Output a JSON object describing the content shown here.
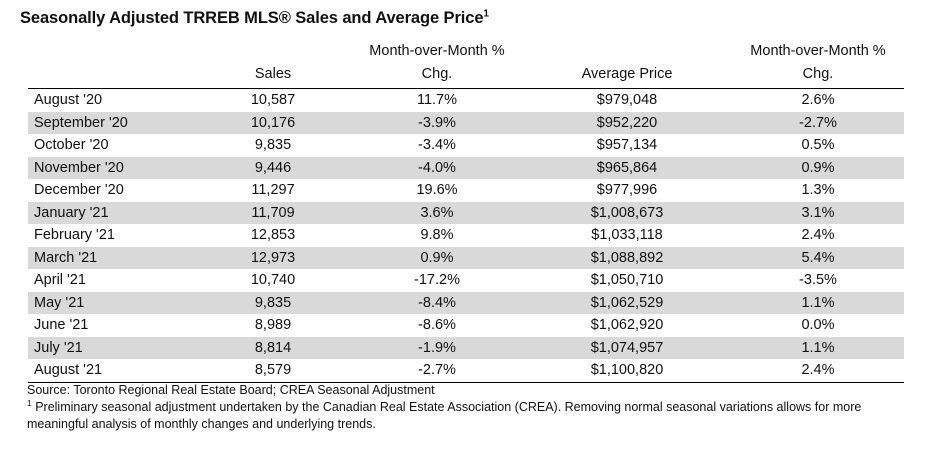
{
  "title": {
    "text": "Seasonally Adjusted TRREB MLS® Sales and Average Price",
    "footnote_marker": "1"
  },
  "headers": {
    "sales": "Sales",
    "sales_chg_line1": "Month-over-Month %",
    "sales_chg_line2": "Chg.",
    "price": "Average Price",
    "price_chg_line1": "Month-over-Month %",
    "price_chg_line2": "Chg."
  },
  "rows": [
    {
      "month": "August '20",
      "sales": "10,587",
      "sales_chg": "11.7%",
      "price": "$979,048",
      "price_chg": "2.6%"
    },
    {
      "month": "September '20",
      "sales": "10,176",
      "sales_chg": "-3.9%",
      "price": "$952,220",
      "price_chg": "-2.7%"
    },
    {
      "month": "October '20",
      "sales": "9,835",
      "sales_chg": "-3.4%",
      "price": "$957,134",
      "price_chg": "0.5%"
    },
    {
      "month": "November '20",
      "sales": "9,446",
      "sales_chg": "-4.0%",
      "price": "$965,864",
      "price_chg": "0.9%"
    },
    {
      "month": "December '20",
      "sales": "11,297",
      "sales_chg": "19.6%",
      "price": "$977,996",
      "price_chg": "1.3%"
    },
    {
      "month": "January '21",
      "sales": "11,709",
      "sales_chg": "3.6%",
      "price": "$1,008,673",
      "price_chg": "3.1%"
    },
    {
      "month": "February '21",
      "sales": "12,853",
      "sales_chg": "9.8%",
      "price": "$1,033,118",
      "price_chg": "2.4%"
    },
    {
      "month": "March '21",
      "sales": "12,973",
      "sales_chg": "0.9%",
      "price": "$1,088,892",
      "price_chg": "5.4%"
    },
    {
      "month": "April '21",
      "sales": "10,740",
      "sales_chg": "-17.2%",
      "price": "$1,050,710",
      "price_chg": "-3.5%"
    },
    {
      "month": "May '21",
      "sales": "9,835",
      "sales_chg": "-8.4%",
      "price": "$1,062,529",
      "price_chg": "1.1%"
    },
    {
      "month": "June '21",
      "sales": "8,989",
      "sales_chg": "-8.6%",
      "price": "$1,062,920",
      "price_chg": "0.0%"
    },
    {
      "month": "July '21",
      "sales": "8,814",
      "sales_chg": "-1.9%",
      "price": "$1,074,957",
      "price_chg": "1.1%"
    },
    {
      "month": "August '21",
      "sales": "8,579",
      "sales_chg": "-2.7%",
      "price": "$1,100,820",
      "price_chg": "2.4%"
    }
  ],
  "notes": {
    "source": "Source: Toronto Regional Real Estate Board; CREA Seasonal Adjustment",
    "footnote_marker": "1",
    "footnote": " Preliminary seasonal adjustment undertaken by the Canadian Real Estate Association (CREA).  Removing normal seasonal variations allows for more meaningful analysis of monthly changes and underlying trends."
  },
  "colors": {
    "stripe": "#d9d9d9",
    "rule": "#000000"
  }
}
